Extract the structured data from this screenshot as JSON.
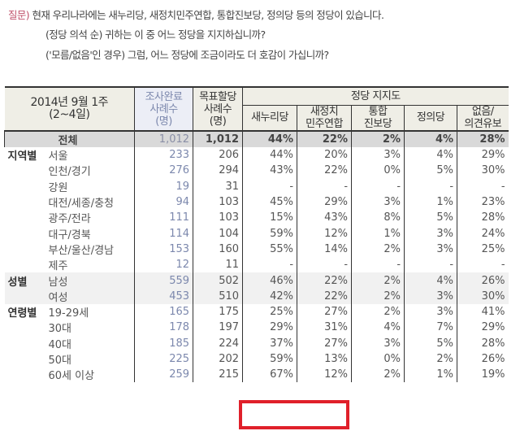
{
  "question": {
    "label": "질문)",
    "line1": "현재 우리나라에는 새누리당, 새정치민주연합, 통합진보당, 정의당 등의 정당이 있습니다.",
    "line2": "(정당 의석 순) 귀하는 이 중 어느 정당을 지지하십니까?",
    "line3": "('모름/없음'인 경우) 그럼, 어느 정당에 조금이라도 더 호감이 가십니까?"
  },
  "table": {
    "period_line1": "2014년 9월 1주",
    "period_line2": "(2~4일)",
    "col_completed": [
      "조사완료",
      "사례수",
      "(명)"
    ],
    "col_target": [
      "목표할당",
      "사례수",
      "(명)"
    ],
    "group_header": "정당 지지도",
    "parties": [
      [
        "새누리당"
      ],
      [
        "새정치",
        "민주연합"
      ],
      [
        "통합",
        "진보당"
      ],
      [
        "정의당"
      ],
      [
        "없음/",
        "의견유보"
      ]
    ],
    "total": {
      "label": "전체",
      "completed": "1,012",
      "target": "1,012",
      "values": [
        "44%",
        "22%",
        "2%",
        "4%",
        "28%"
      ]
    },
    "rows": [
      {
        "group": "지역별",
        "sub": "서울",
        "completed": "233",
        "target": "206",
        "values": [
          "44%",
          "20%",
          "3%",
          "4%",
          "29%"
        ]
      },
      {
        "group": "",
        "sub": "인천/경기",
        "completed": "276",
        "target": "294",
        "values": [
          "43%",
          "22%",
          "0%",
          "5%",
          "30%"
        ]
      },
      {
        "group": "",
        "sub": "강원",
        "completed": "19",
        "target": "31",
        "values": [
          "-",
          "-",
          "-",
          "-",
          "-"
        ]
      },
      {
        "group": "",
        "sub": "대전/세종/충청",
        "completed": "94",
        "target": "103",
        "values": [
          "45%",
          "29%",
          "3%",
          "1%",
          "23%"
        ]
      },
      {
        "group": "",
        "sub": "광주/전라",
        "completed": "111",
        "target": "103",
        "values": [
          "15%",
          "43%",
          "8%",
          "5%",
          "28%"
        ]
      },
      {
        "group": "",
        "sub": "대구/경북",
        "completed": "114",
        "target": "104",
        "values": [
          "59%",
          "12%",
          "1%",
          "3%",
          "24%"
        ]
      },
      {
        "group": "",
        "sub": "부산/울산/경남",
        "completed": "153",
        "target": "160",
        "values": [
          "55%",
          "14%",
          "2%",
          "3%",
          "25%"
        ]
      },
      {
        "group": "",
        "sub": "제주",
        "completed": "12",
        "target": "11",
        "values": [
          "-",
          "-",
          "-",
          "-",
          "-"
        ]
      },
      {
        "group": "성별",
        "sub": "남성",
        "completed": "559",
        "target": "502",
        "values": [
          "46%",
          "22%",
          "2%",
          "4%",
          "26%"
        ]
      },
      {
        "group": "",
        "sub": "여성",
        "completed": "453",
        "target": "510",
        "values": [
          "42%",
          "22%",
          "2%",
          "3%",
          "30%"
        ]
      },
      {
        "group": "연령별",
        "sub": "19-29세",
        "completed": "165",
        "target": "175",
        "values": [
          "25%",
          "27%",
          "2%",
          "3%",
          "41%"
        ]
      },
      {
        "group": "",
        "sub": "30대",
        "completed": "178",
        "target": "197",
        "values": [
          "29%",
          "31%",
          "4%",
          "7%",
          "29%"
        ]
      },
      {
        "group": "",
        "sub": "40대",
        "completed": "185",
        "target": "224",
        "values": [
          "37%",
          "27%",
          "3%",
          "5%",
          "28%"
        ]
      },
      {
        "group": "",
        "sub": "50대",
        "completed": "225",
        "target": "202",
        "values": [
          "59%",
          "13%",
          "0%",
          "2%",
          "26%"
        ]
      },
      {
        "group": "",
        "sub": "60세 이상",
        "completed": "259",
        "target": "215",
        "values": [
          "67%",
          "12%",
          "2%",
          "1%",
          "19%"
        ]
      }
    ],
    "highlight_color": "#e0202a"
  }
}
